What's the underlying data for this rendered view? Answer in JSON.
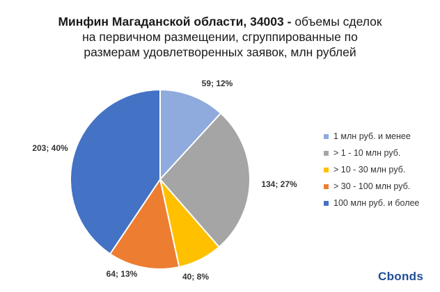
{
  "title": {
    "bold": "Минфин Магаданской области, 34003 -",
    "line1_rest": " объемы сделок",
    "line2": "на первичном размещении, сгруппированные по",
    "line3": "размерам удовлетворенных заявок, млн рублей"
  },
  "logo": "Cbonds",
  "chart_data": {
    "type": "pie",
    "title": "Минфин Магаданской области, 34003 - объемы сделок на первичном размещении, сгруппированные по размерам удовлетворенных заявок, млн рублей",
    "categories": [
      "1 млн руб. и менее",
      "> 1 - 10 млн руб.",
      "> 10 - 30 млн руб.",
      "> 30 - 100 млн руб.",
      "100 млн руб. и более"
    ],
    "values": [
      59,
      134,
      40,
      64,
      203
    ],
    "percents": [
      12,
      27,
      8,
      13,
      40
    ],
    "labels": [
      "59; 12%",
      "134; 27%",
      "40; 8%",
      "64; 13%",
      "203; 40%"
    ],
    "colors": [
      "#8faadc",
      "#a5a5a5",
      "#ffc000",
      "#ed7d31",
      "#4472c4"
    ],
    "legend": "right"
  }
}
